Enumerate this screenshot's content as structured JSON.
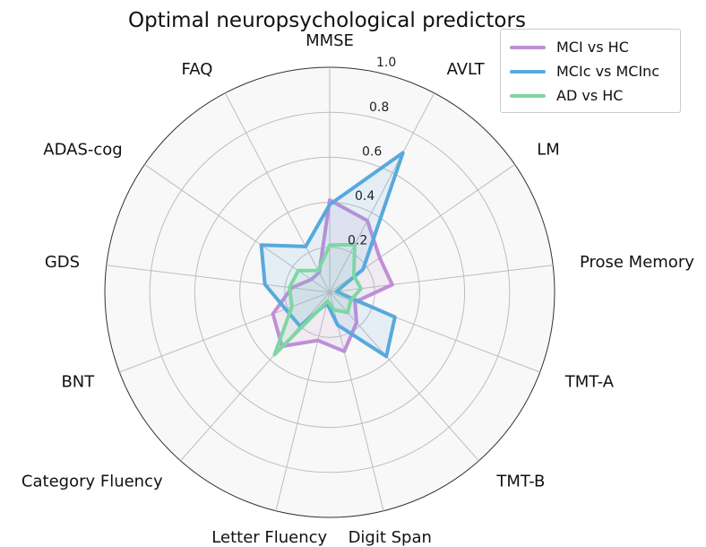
{
  "chart_data": {
    "type": "radar",
    "title": "Optimal neuropsychological predictors",
    "axes": [
      "MMSE",
      "AVLT",
      "LM",
      "Prose Memory",
      "TMT-A",
      "TMT-B",
      "Digit Span",
      "Letter Fluency",
      "Category Fluency",
      "BNT",
      "GDS",
      "ADAS-cog",
      "FAQ"
    ],
    "rlim": [
      0,
      1.0
    ],
    "rticks": [
      "0.2",
      "0.4",
      "0.6",
      "0.8",
      "1.0"
    ],
    "rtick_values": [
      0.2,
      0.4,
      0.6,
      0.8,
      1.0
    ],
    "grid": true,
    "legend_position": "top-right",
    "series": [
      {
        "name": "MCI vs HC",
        "color": "#bf8fd6",
        "values": [
          0.41,
          0.36,
          0.27,
          0.28,
          0.12,
          0.18,
          0.27,
          0.22,
          0.32,
          0.27,
          0.17,
          0.1,
          0.1
        ]
      },
      {
        "name": "MCIc vs MCInc",
        "color": "#58a9dc",
        "values": [
          0.39,
          0.7,
          0.18,
          0.03,
          0.31,
          0.38,
          0.15,
          0.05,
          0.2,
          0.21,
          0.29,
          0.37,
          0.23
        ]
      },
      {
        "name": "AD vs HC",
        "color": "#7ed6a5",
        "values": [
          0.21,
          0.24,
          0.13,
          0.14,
          0.1,
          0.12,
          0.08,
          0.04,
          0.37,
          0.18,
          0.18,
          0.17,
          0.11
        ]
      }
    ]
  }
}
